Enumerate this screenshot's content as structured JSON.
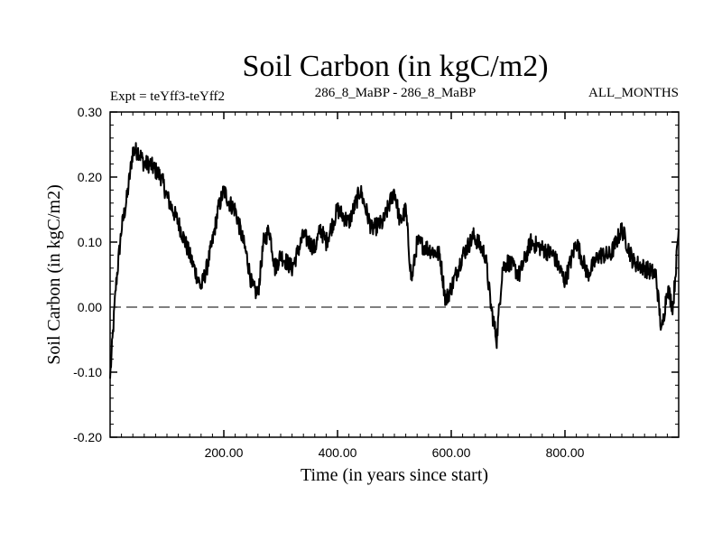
{
  "chart_data": {
    "type": "line",
    "title": "Soil Carbon (in kgC/m2)",
    "subtitle_left": "Expt = teYff3-teYff2",
    "subtitle_center": "286_8_MaBP - 286_8_MaBP",
    "subtitle_right": "ALL_MONTHS",
    "xlabel": "Time (in years since start)",
    "ylabel": "Soil Carbon (in kgC/m2)",
    "xlim": [
      0,
      1000
    ],
    "ylim": [
      -0.2,
      0.3
    ],
    "x_ticks": [
      200,
      400,
      600,
      800
    ],
    "x_tick_labels": [
      "200.00",
      "400.00",
      "600.00",
      "800.00"
    ],
    "y_ticks": [
      -0.2,
      -0.1,
      0.0,
      0.1,
      0.2,
      0.3
    ],
    "y_tick_labels": [
      "-0.20",
      "-0.10",
      "0.00",
      "0.10",
      "0.20",
      "0.30"
    ],
    "reference_line": {
      "y": 0.0,
      "style": "dashed"
    },
    "series": [
      {
        "name": "Soil Carbon",
        "x": [
          0,
          5,
          10,
          20,
          30,
          40,
          50,
          60,
          70,
          80,
          90,
          100,
          120,
          140,
          160,
          170,
          180,
          190,
          200,
          210,
          220,
          240,
          250,
          260,
          270,
          280,
          290,
          300,
          320,
          340,
          360,
          370,
          380,
          400,
          420,
          440,
          460,
          480,
          500,
          510,
          520,
          530,
          540,
          560,
          580,
          590,
          600,
          620,
          640,
          660,
          670,
          680,
          690,
          700,
          720,
          740,
          760,
          780,
          800,
          820,
          840,
          860,
          880,
          900,
          920,
          940,
          960,
          970,
          980,
          990,
          1000
        ],
        "values": [
          -0.11,
          -0.04,
          0.03,
          0.12,
          0.17,
          0.24,
          0.24,
          0.22,
          0.22,
          0.21,
          0.2,
          0.17,
          0.13,
          0.08,
          0.03,
          0.06,
          0.1,
          0.15,
          0.18,
          0.16,
          0.15,
          0.08,
          0.03,
          0.02,
          0.1,
          0.12,
          0.06,
          0.08,
          0.06,
          0.11,
          0.09,
          0.12,
          0.1,
          0.15,
          0.13,
          0.18,
          0.12,
          0.13,
          0.18,
          0.13,
          0.15,
          0.04,
          0.1,
          0.09,
          0.08,
          0.01,
          0.03,
          0.08,
          0.11,
          0.08,
          0.0,
          -0.05,
          0.06,
          0.07,
          0.05,
          0.1,
          0.09,
          0.08,
          0.04,
          0.1,
          0.05,
          0.08,
          0.08,
          0.12,
          0.07,
          0.06,
          0.05,
          -0.04,
          0.03,
          0.0,
          0.12
        ]
      }
    ]
  }
}
